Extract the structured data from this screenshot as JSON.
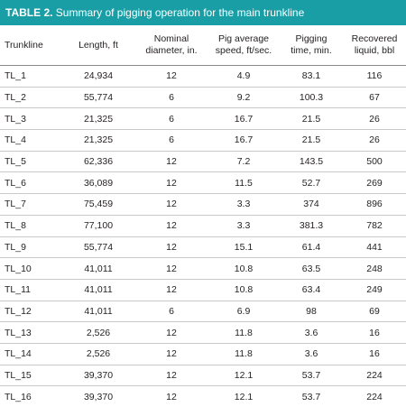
{
  "table": {
    "title_label": "TABLE 2.",
    "title_text": " Summary of pigging operation for the main trunkline",
    "headers": [
      {
        "line1": "Trunkline",
        "line2": ""
      },
      {
        "line1": "Length, ft",
        "line2": ""
      },
      {
        "line1": "Nominal",
        "line2": "diameter, in."
      },
      {
        "line1": "Pig average",
        "line2": "speed, ft/sec."
      },
      {
        "line1": "Pigging",
        "line2": "time, min."
      },
      {
        "line1": "Recovered",
        "line2": "liquid, bbl"
      }
    ],
    "rows": [
      [
        "TL_1",
        "24,934",
        "12",
        "4.9",
        "83.1",
        "116"
      ],
      [
        "TL_2",
        "55,774",
        "6",
        "9.2",
        "100.3",
        "67"
      ],
      [
        "TL_3",
        "21,325",
        "6",
        "16.7",
        "21.5",
        "26"
      ],
      [
        "TL_4",
        "21,325",
        "6",
        "16.7",
        "21.5",
        "26"
      ],
      [
        "TL_5",
        "62,336",
        "12",
        "7.2",
        "143.5",
        "500"
      ],
      [
        "TL_6",
        "36,089",
        "12",
        "11.5",
        "52.7",
        "269"
      ],
      [
        "TL_7",
        "75,459",
        "12",
        "3.3",
        "374",
        "896"
      ],
      [
        "TL_8",
        "77,100",
        "12",
        "3.3",
        "381.3",
        "782"
      ],
      [
        "TL_9",
        "55,774",
        "12",
        "15.1",
        "61.4",
        "441"
      ],
      [
        "TL_10",
        "41,011",
        "12",
        "10.8",
        "63.5",
        "248"
      ],
      [
        "TL_11",
        "41,011",
        "12",
        "10.8",
        "63.4",
        "249"
      ],
      [
        "TL_12",
        "41,011",
        "6",
        "6.9",
        "98",
        "69"
      ],
      [
        "TL_13",
        "2,526",
        "12",
        "11.8",
        "3.6",
        "16"
      ],
      [
        "TL_14",
        "2,526",
        "12",
        "11.8",
        "3.6",
        "16"
      ],
      [
        "TL_15",
        "39,370",
        "12",
        "12.1",
        "53.7",
        "224"
      ],
      [
        "TL_16",
        "39,370",
        "12",
        "12.1",
        "53.7",
        "224"
      ]
    ]
  }
}
